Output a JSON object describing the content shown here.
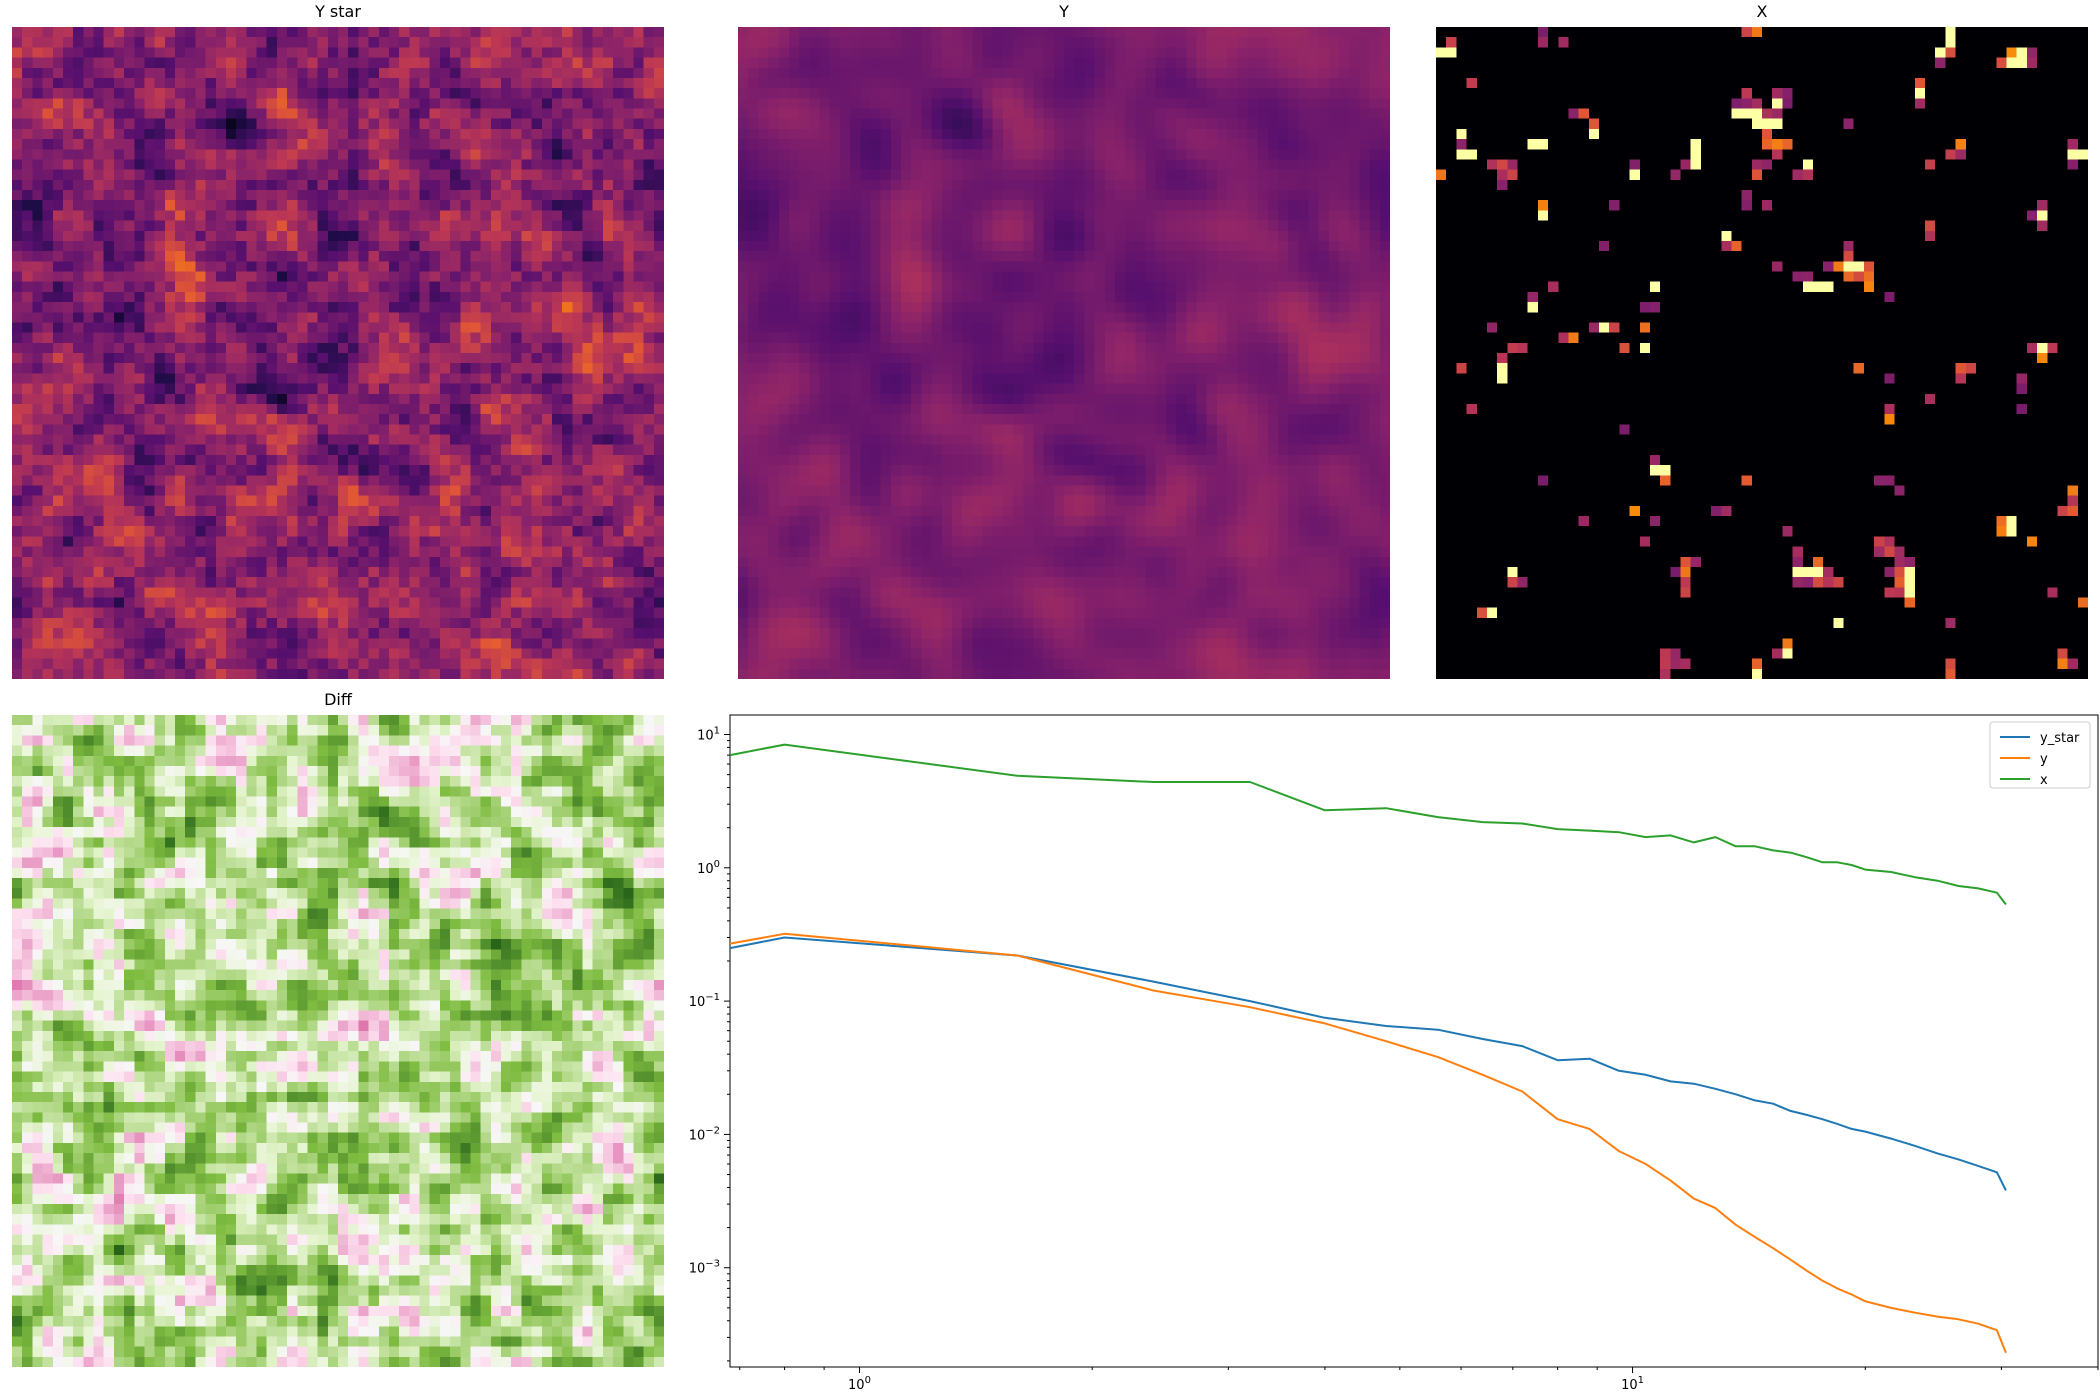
{
  "panels": {
    "ystar": {
      "title": "Y star",
      "colormap": "inferno"
    },
    "y": {
      "title": "Y",
      "colormap": "inferno"
    },
    "x": {
      "title": "X",
      "colormap": "inferno"
    },
    "diff": {
      "title": "Diff",
      "colormap": "PiYG"
    }
  },
  "chart_data": {
    "type": "line",
    "title": "",
    "xlabel": "",
    "ylabel": "",
    "xscale": "log",
    "yscale": "log",
    "xlim": [
      0.68,
      40
    ],
    "ylim": [
      0.00018,
      14
    ],
    "grid": false,
    "legend": "top-right",
    "x_tick_labels": [
      "10^0",
      "10^1"
    ],
    "y_tick_labels": [
      "10^1",
      "10^0",
      "10^-1",
      "10^-2",
      "10^-3"
    ],
    "series": [
      {
        "name": "y_star",
        "color": "#1f77b4",
        "x": [
          0.68,
          0.8,
          1.6,
          2.4,
          3.2,
          4.0,
          4.8,
          5.6,
          6.4,
          7.2,
          8.0,
          8.8,
          9.6,
          10.4,
          11.2,
          12.0,
          12.8,
          13.6,
          14.4,
          15.2,
          16.0,
          16.8,
          17.6,
          18.4,
          19.2,
          20.0,
          21.6,
          23.2,
          24.8,
          26.4,
          28.0,
          29.6,
          30.4
        ],
        "y": [
          0.25,
          0.3,
          0.22,
          0.14,
          0.1,
          0.075,
          0.065,
          0.061,
          0.052,
          0.046,
          0.036,
          0.037,
          0.03,
          0.028,
          0.025,
          0.024,
          0.022,
          0.02,
          0.018,
          0.017,
          0.015,
          0.014,
          0.013,
          0.012,
          0.011,
          0.0105,
          0.0093,
          0.0082,
          0.0072,
          0.0065,
          0.0058,
          0.0052,
          0.0038
        ]
      },
      {
        "name": "y",
        "color": "#ff7f0e",
        "x": [
          0.68,
          0.8,
          1.6,
          2.4,
          3.2,
          4.0,
          4.8,
          5.6,
          6.4,
          7.2,
          8.0,
          8.8,
          9.6,
          10.4,
          11.2,
          12.0,
          12.8,
          13.6,
          14.4,
          15.2,
          16.0,
          16.8,
          17.6,
          18.4,
          19.2,
          20.0,
          21.6,
          23.2,
          24.8,
          26.4,
          28.0,
          29.6,
          30.4
        ],
        "y": [
          0.27,
          0.32,
          0.22,
          0.12,
          0.09,
          0.068,
          0.05,
          0.038,
          0.028,
          0.021,
          0.013,
          0.011,
          0.0075,
          0.006,
          0.0045,
          0.0033,
          0.0028,
          0.0021,
          0.0017,
          0.0014,
          0.00115,
          0.00095,
          0.0008,
          0.0007,
          0.00063,
          0.00056,
          0.0005,
          0.00046,
          0.00043,
          0.00041,
          0.00038,
          0.00034,
          0.00023
        ]
      },
      {
        "name": "x",
        "color": "#2ca02c",
        "x": [
          0.68,
          0.8,
          1.6,
          2.4,
          3.2,
          4.0,
          4.8,
          5.6,
          6.4,
          7.2,
          8.0,
          8.8,
          9.6,
          10.4,
          11.2,
          12.0,
          12.8,
          13.6,
          14.4,
          15.2,
          16.0,
          16.8,
          17.6,
          18.4,
          19.2,
          20.0,
          21.6,
          23.2,
          24.8,
          26.4,
          28.0,
          29.6,
          30.4
        ],
        "y": [
          7.0,
          8.4,
          4.9,
          4.4,
          4.4,
          2.7,
          2.8,
          2.4,
          2.2,
          2.15,
          1.95,
          1.9,
          1.85,
          1.7,
          1.75,
          1.55,
          1.7,
          1.45,
          1.45,
          1.35,
          1.3,
          1.2,
          1.1,
          1.1,
          1.05,
          0.97,
          0.93,
          0.85,
          0.8,
          0.73,
          0.7,
          0.65,
          0.53
        ]
      }
    ]
  }
}
